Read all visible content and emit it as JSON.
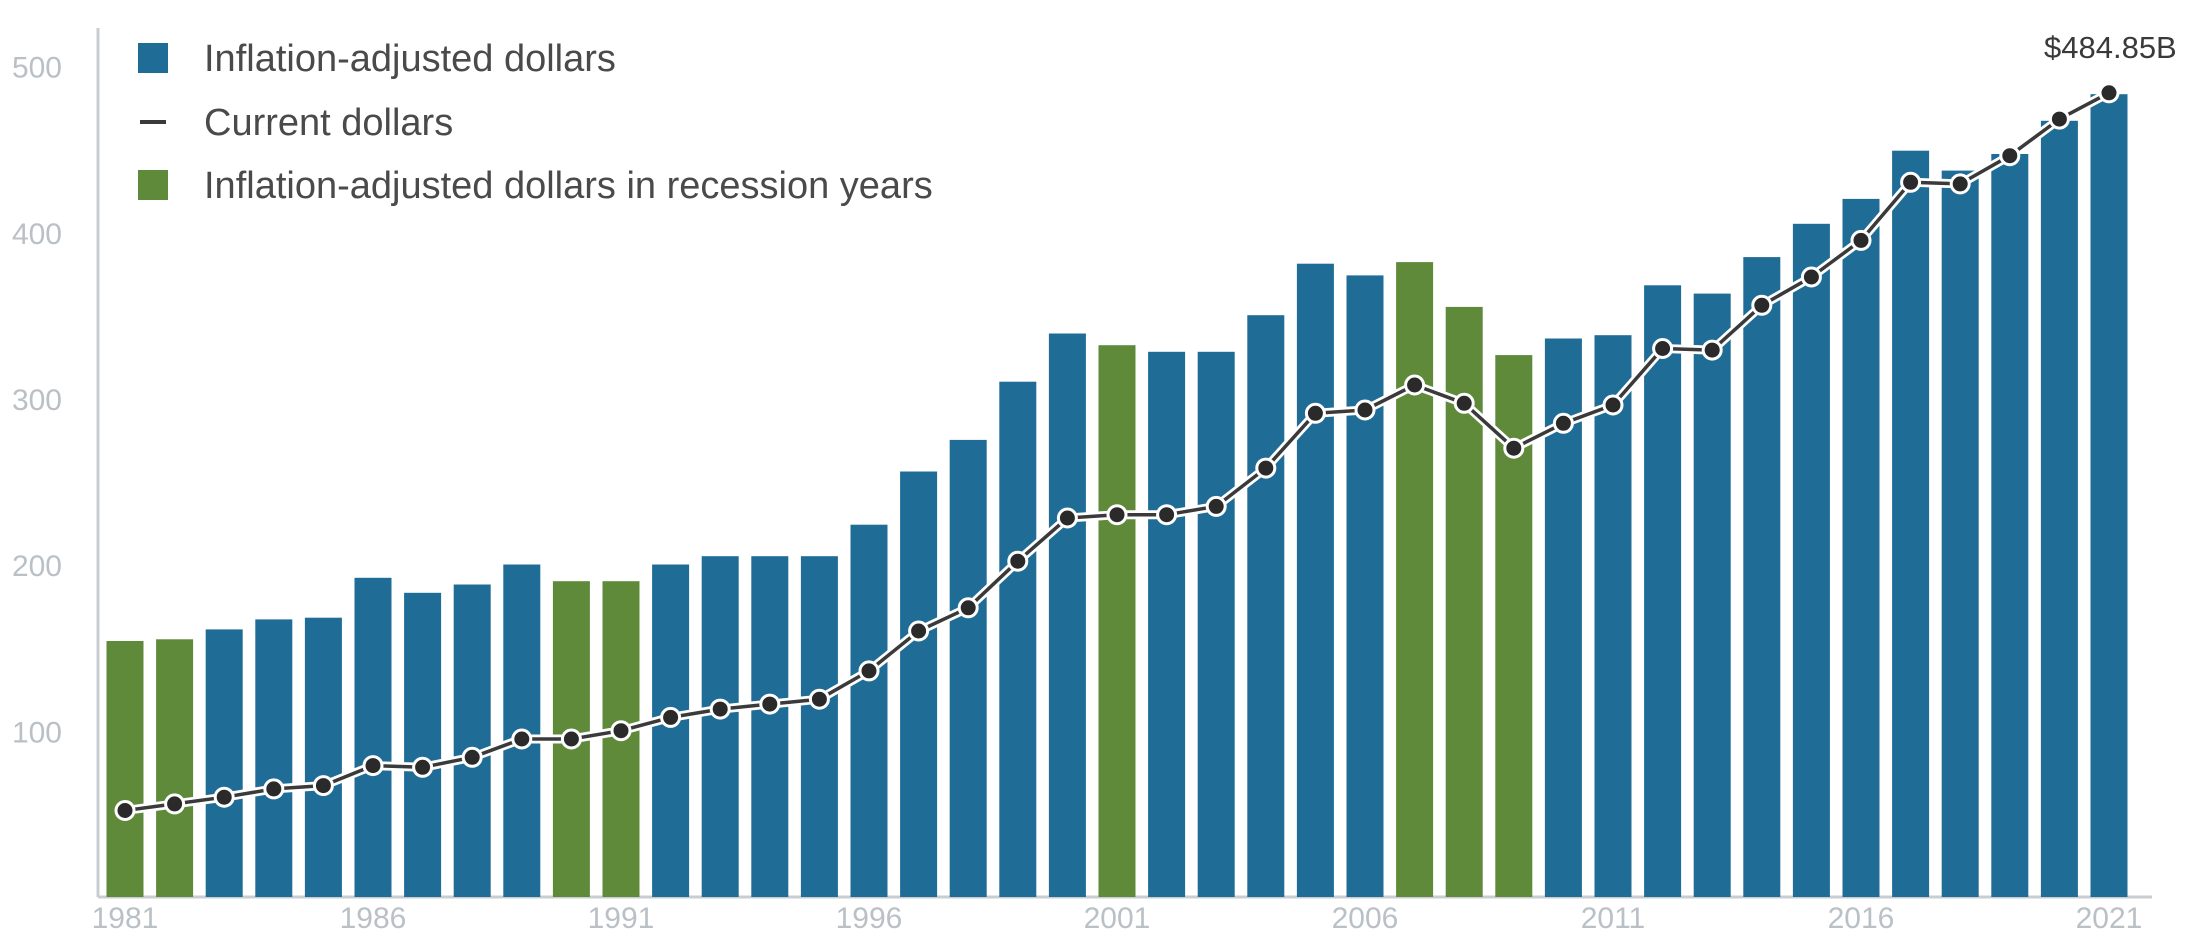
{
  "colors": {
    "bar": "#1f6c96",
    "recession_bar": "#5e8a3a",
    "line": "#3a3a3a",
    "axis": "#c8cdd1"
  },
  "legend": [
    {
      "label": "Inflation-adjusted dollars",
      "kind": "square",
      "color": "#1f6c96"
    },
    {
      "label": "Current dollars",
      "kind": "line",
      "color": "#3a3a3a"
    },
    {
      "label": "Inflation-adjusted dollars in recession years",
      "kind": "square",
      "color": "#5e8a3a"
    }
  ],
  "chart_data": {
    "type": "bar",
    "title": "",
    "xlabel": "",
    "ylabel": "",
    "ylim": [
      0,
      520
    ],
    "y_ticks": [
      100,
      200,
      300,
      400,
      500
    ],
    "x_tick_labels": [
      "1981",
      "1986",
      "1991",
      "1996",
      "2001",
      "2006",
      "2011",
      "2016",
      "2021"
    ],
    "legend_position": "top-left",
    "grid": false,
    "categories": [
      1981,
      1982,
      1983,
      1984,
      1985,
      1986,
      1987,
      1988,
      1989,
      1990,
      1991,
      1992,
      1993,
      1994,
      1995,
      1996,
      1997,
      1998,
      1999,
      2000,
      2001,
      2002,
      2003,
      2004,
      2005,
      2006,
      2007,
      2008,
      2009,
      2010,
      2011,
      2012,
      2013,
      2014,
      2015,
      2016,
      2017,
      2018,
      2019,
      2020,
      2021
    ],
    "series": [
      {
        "name": "Inflation-adjusted dollars",
        "type": "bar",
        "values": [
          155,
          156,
          162,
          168,
          169,
          193,
          184,
          189,
          201,
          191,
          191,
          201,
          206,
          206,
          206,
          225,
          257,
          276,
          311,
          340,
          333,
          329,
          329,
          351,
          382,
          375,
          383,
          356,
          327,
          337,
          339,
          369,
          364,
          386,
          406,
          421,
          450,
          438,
          448,
          468,
          484
        ],
        "recession": [
          true,
          true,
          false,
          false,
          false,
          false,
          false,
          false,
          false,
          true,
          true,
          false,
          false,
          false,
          false,
          false,
          false,
          false,
          false,
          false,
          true,
          false,
          false,
          false,
          false,
          false,
          true,
          true,
          true,
          false,
          false,
          false,
          false,
          false,
          false,
          false,
          false,
          false,
          false,
          false,
          false
        ]
      },
      {
        "name": "Current dollars",
        "type": "line",
        "values": [
          53,
          57,
          61,
          66,
          68,
          80,
          79,
          85,
          96,
          96,
          101,
          109,
          114,
          117,
          120,
          137,
          161,
          175,
          203,
          229,
          231,
          231,
          236,
          259,
          292,
          294,
          309,
          298,
          271,
          286,
          297,
          331,
          330,
          357,
          374,
          396,
          431,
          430,
          447,
          469,
          484.85
        ]
      }
    ],
    "annotations": [
      {
        "text": "$484.85B",
        "category": 2021,
        "series": "Current dollars"
      }
    ]
  }
}
